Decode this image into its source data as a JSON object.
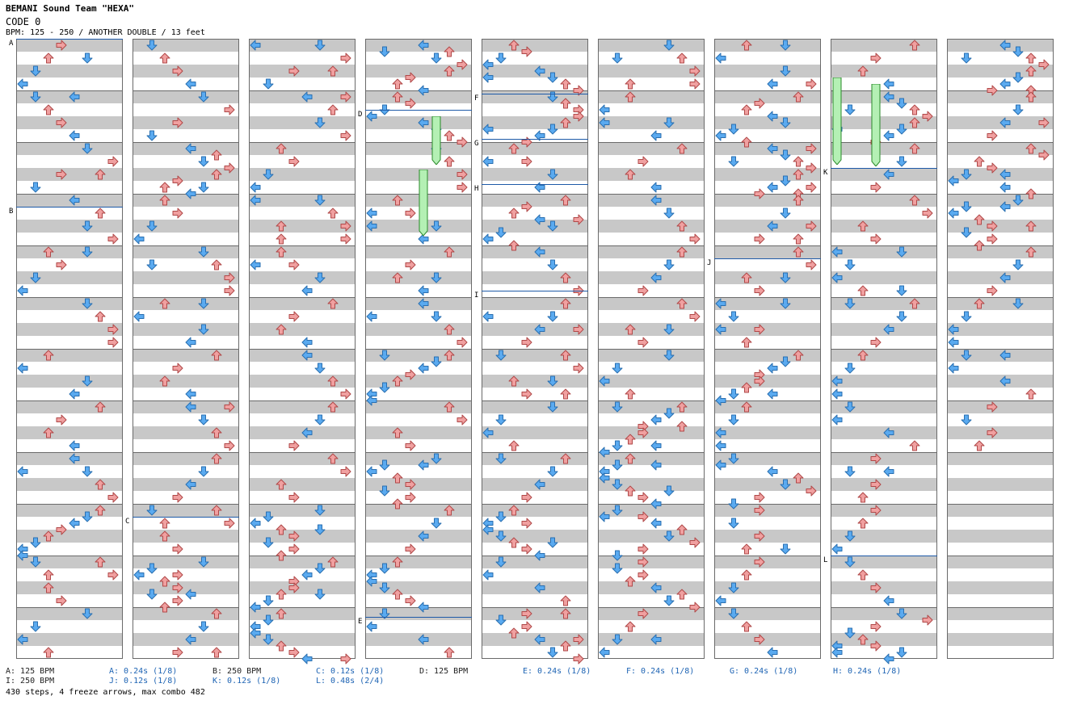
{
  "header": {
    "title": "BEMANI Sound Team \"HEXA\"",
    "song": "CODE 0",
    "info": "BPM: 125 - 250 / ANOTHER DOUBLE / 13 feet"
  },
  "colors": {
    "left": "#5aaaf0",
    "right": "#f0a0a0",
    "up": "#f0a0a0",
    "down": "#5aaaf0",
    "freeze": "#b4f0b4",
    "marker_line": "#1e5aa8",
    "stripe": "#c8c8c8"
  },
  "markers": [
    {
      "label": "A",
      "column": 0,
      "kind": "bpm"
    },
    {
      "label": "B",
      "column": 0,
      "kind": "bpm"
    },
    {
      "label": "C",
      "column": 1,
      "kind": "stop"
    },
    {
      "label": "D",
      "column": 3,
      "kind": "bpm"
    },
    {
      "label": "E",
      "column": 3,
      "kind": "stop"
    },
    {
      "label": "F",
      "column": 4,
      "kind": "stop"
    },
    {
      "label": "G",
      "column": 4,
      "kind": "stop"
    },
    {
      "label": "H",
      "column": 4,
      "kind": "stop"
    },
    {
      "label": "I",
      "column": 4,
      "kind": "bpm"
    },
    {
      "label": "J",
      "column": 6,
      "kind": "stop"
    },
    {
      "label": "K",
      "column": 7,
      "kind": "stop"
    },
    {
      "label": "L",
      "column": 7,
      "kind": "stop"
    }
  ],
  "legend": [
    {
      "text": "A: 125 BPM",
      "style": "black"
    },
    {
      "text": "A: 0.24s (1/8)",
      "style": "blue"
    },
    {
      "text": "B: 250 BPM",
      "style": "black"
    },
    {
      "text": "C: 0.12s (1/8)",
      "style": "blue"
    },
    {
      "text": "D: 125 BPM",
      "style": "black"
    },
    {
      "text": "E: 0.24s (1/8)",
      "style": "blue"
    },
    {
      "text": "F: 0.24s (1/8)",
      "style": "blue"
    },
    {
      "text": "G: 0.24s (1/8)",
      "style": "blue"
    },
    {
      "text": "H: 0.24s (1/8)",
      "style": "blue"
    },
    {
      "text": "I: 250 BPM",
      "style": "black"
    },
    {
      "text": "J: 0.12s (1/8)",
      "style": "blue"
    },
    {
      "text": "K: 0.12s (1/8)",
      "style": "blue"
    },
    {
      "text": "L: 0.48s (2/4)",
      "style": "blue"
    }
  ],
  "stats": "430 steps, 4 freeze arrows, max combo 482",
  "chart": {
    "columns": 9,
    "measures_per_column": 12,
    "lanes": 8
  }
}
